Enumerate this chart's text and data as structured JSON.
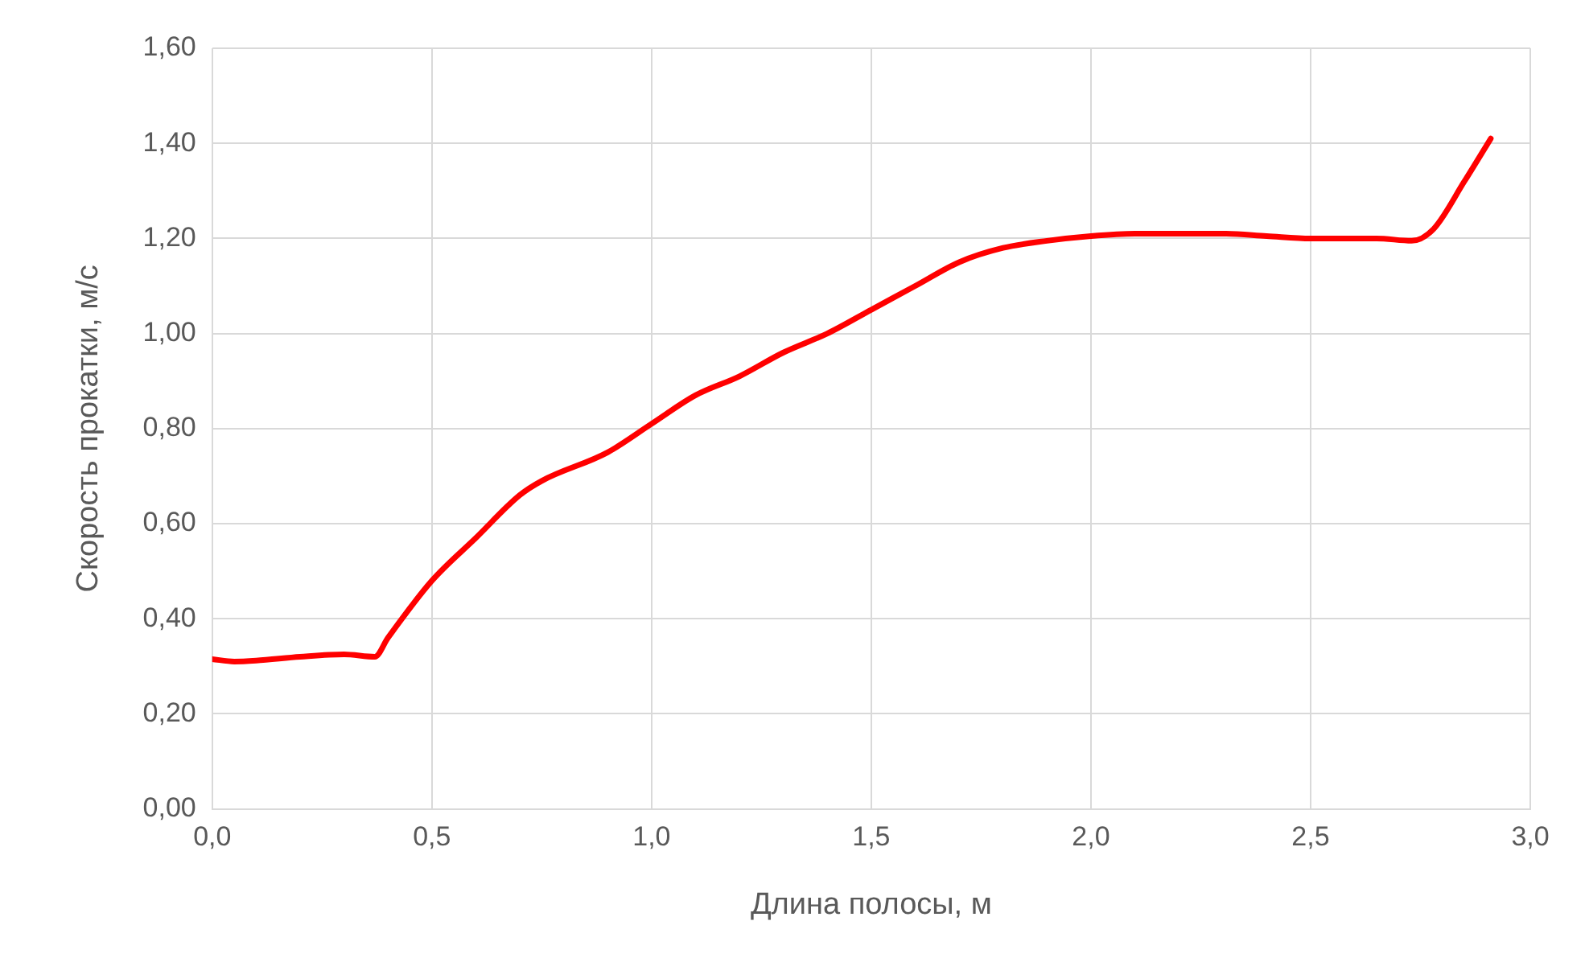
{
  "chart_data": {
    "type": "line",
    "xlabel": "Длина полосы, м",
    "ylabel": "Скорость прокатки, м/с",
    "x": [
      0,
      0.05,
      0.1,
      0.2,
      0.3,
      0.37,
      0.4,
      0.5,
      0.6,
      0.7,
      0.75,
      0.9,
      1.0,
      1.1,
      1.2,
      1.3,
      1.4,
      1.5,
      1.6,
      1.7,
      1.8,
      1.9,
      2.0,
      2.1,
      2.3,
      2.4,
      2.5,
      2.65,
      2.73,
      2.78,
      2.85,
      2.91
    ],
    "series": [
      {
        "color": "#ff0000",
        "values": [
          0.315,
          0.31,
          0.312,
          0.32,
          0.325,
          0.32,
          0.36,
          0.48,
          0.57,
          0.66,
          0.69,
          0.75,
          0.81,
          0.87,
          0.91,
          0.96,
          1.0,
          1.05,
          1.1,
          1.15,
          1.18,
          1.195,
          1.205,
          1.21,
          1.21,
          1.205,
          1.2,
          1.2,
          1.195,
          1.22,
          1.32,
          1.41
        ]
      }
    ],
    "xlim": [
      0,
      3
    ],
    "xticks": [
      {
        "value": 0,
        "label": "0,0"
      },
      {
        "value": 0.5,
        "label": "0,5"
      },
      {
        "value": 1,
        "label": "1,0"
      },
      {
        "value": 1.5,
        "label": "1,5"
      },
      {
        "value": 2,
        "label": "2,0"
      },
      {
        "value": 2.5,
        "label": "2,5"
      },
      {
        "value": 3,
        "label": "3,0"
      }
    ],
    "ylim": [
      0,
      1.6
    ],
    "yticks": [
      {
        "value": 0,
        "label": "0,00"
      },
      {
        "value": 0.2,
        "label": "0,20"
      },
      {
        "value": 0.4,
        "label": "0,40"
      },
      {
        "value": 0.6,
        "label": "0,60"
      },
      {
        "value": 0.8,
        "label": "0,80"
      },
      {
        "value": 1,
        "label": "1,00"
      },
      {
        "value": 1.2,
        "label": "1,20"
      },
      {
        "value": 1.4,
        "label": "1,40"
      },
      {
        "value": 1.6,
        "label": "1,60"
      }
    ],
    "grid": true,
    "marker": "none",
    "line_style": "solid"
  }
}
